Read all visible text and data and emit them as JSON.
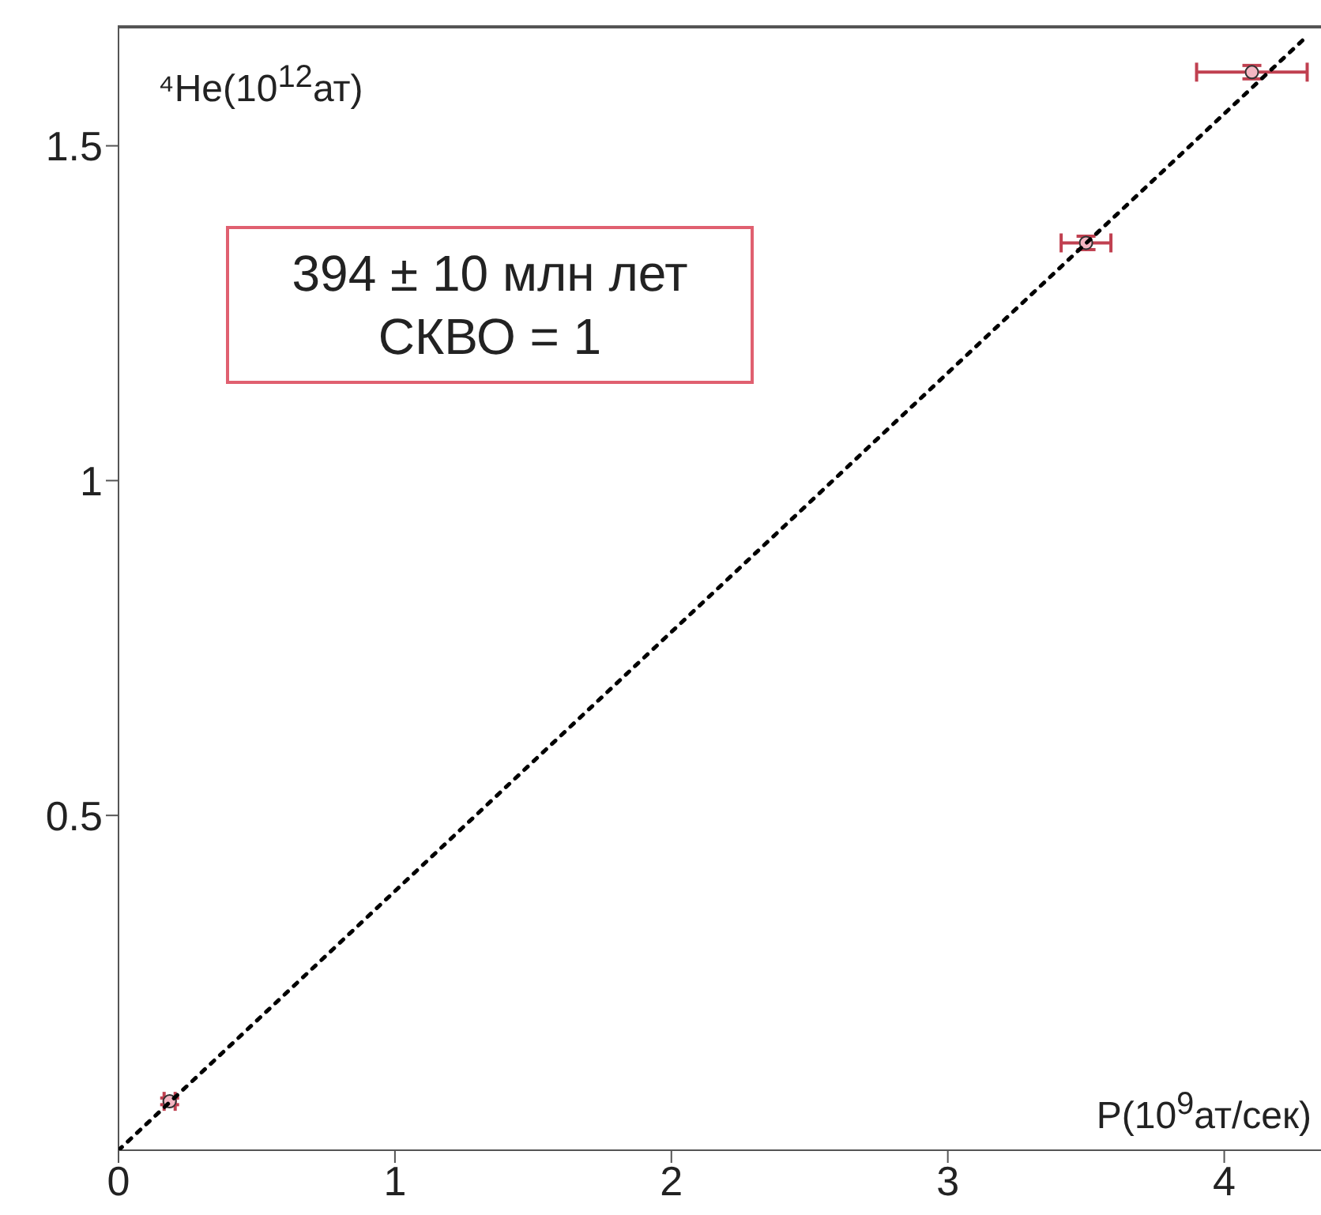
{
  "chart_data": {
    "type": "scatter",
    "xlabel": "P(10$^{9}$ат/сек)",
    "ylabel": "⁴He(10$^{12}$ат)",
    "annotations": [
      "394 ± 10 млн лет",
      "СКВО = 1"
    ],
    "xlim": [
      0,
      4.35
    ],
    "ylim": [
      0,
      1.68
    ],
    "xticks": [
      0,
      1,
      2,
      3,
      4
    ],
    "yticks": [
      0.5,
      1,
      1.5
    ],
    "grid": false,
    "series": [
      {
        "color": "#f4b6c2",
        "x": [
          0.185,
          3.5,
          4.1
        ],
        "values": [
          0.073,
          1.355,
          1.61
        ],
        "xerrors": [
          0.02,
          0.09,
          0.2
        ],
        "errors": [
          0.005,
          0.01,
          0.01
        ]
      },
      {
        "type": "line",
        "color": "#000000",
        "line_style": "dotted",
        "x": [
          0,
          4.3
        ],
        "values": [
          0,
          1.664
        ]
      }
    ]
  }
}
